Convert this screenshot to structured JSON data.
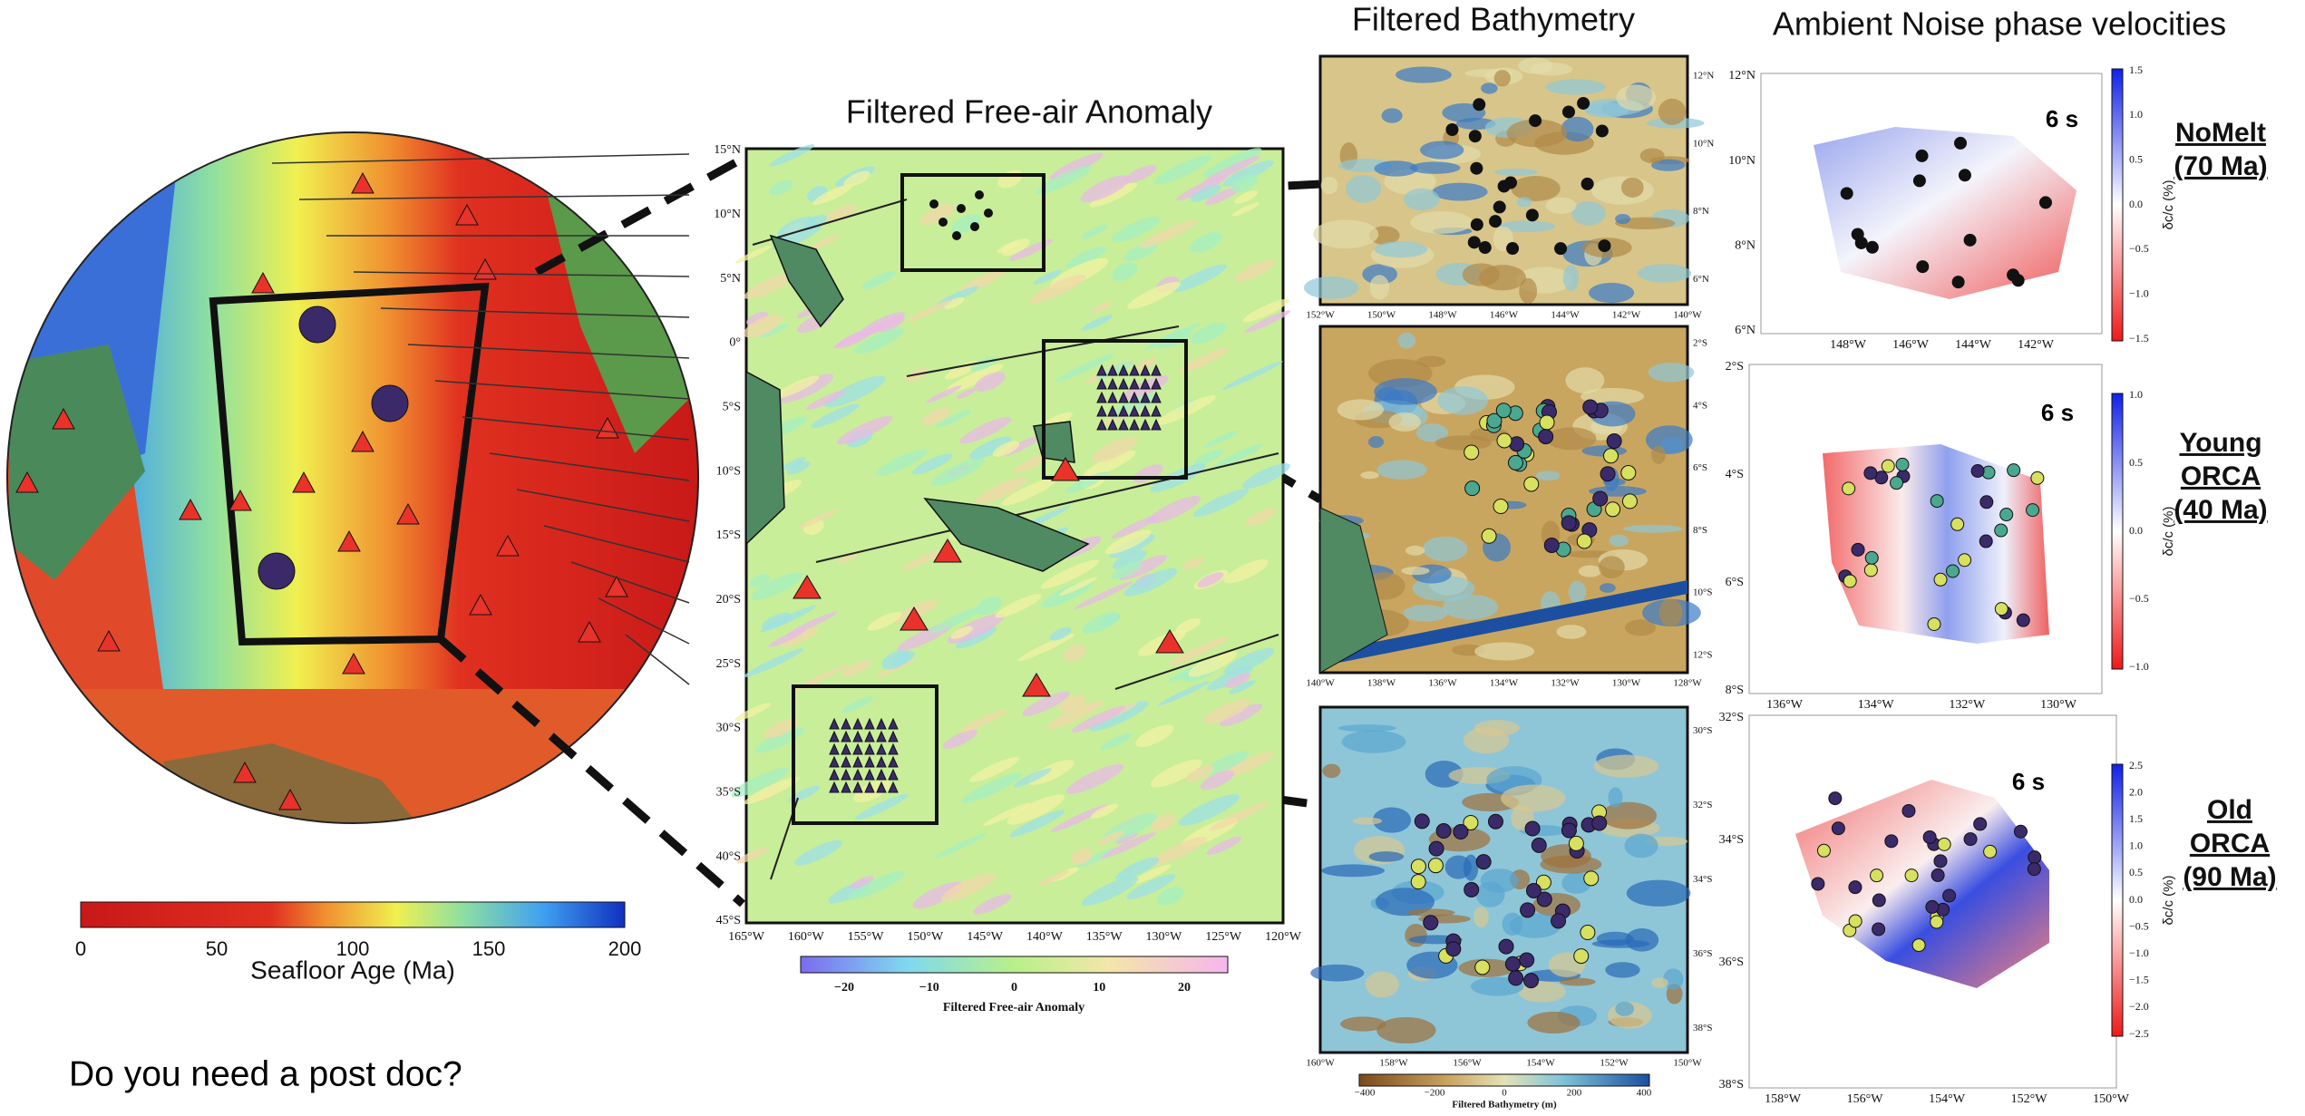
{
  "globe": {
    "colorbar": {
      "ticks": [
        "0",
        "50",
        "100",
        "150",
        "200"
      ],
      "label": "Seafloor Age (Ma)"
    }
  },
  "question": "Do you need a post doc?",
  "free_air": {
    "title": "Filtered Free-air Anomaly",
    "lat_ticks": [
      "15°N",
      "10°N",
      "5°N",
      "0°",
      "5°S",
      "10°S",
      "15°S",
      "20°S",
      "25°S",
      "30°S",
      "35°S",
      "40°S",
      "45°S"
    ],
    "lon_ticks": [
      "165°W",
      "160°W",
      "155°W",
      "150°W",
      "145°W",
      "140°W",
      "135°W",
      "130°W",
      "125°W",
      "120°W"
    ],
    "colorbar": {
      "ticks": [
        "−20",
        "−10",
        "0",
        "10",
        "20"
      ],
      "label": "Filtered Free-air Anomaly"
    }
  },
  "bathymetry": {
    "title": "Filtered Bathymetry",
    "panels": [
      {
        "lon_ticks": [
          "152°W",
          "150°W",
          "148°W",
          "146°W",
          "144°W",
          "142°W",
          "140°W"
        ],
        "lat_ticks": [
          "12°N",
          "10°N",
          "8°N",
          "6°N"
        ]
      },
      {
        "lon_ticks": [
          "140°W",
          "138°W",
          "136°W",
          "134°W",
          "132°W",
          "130°W",
          "128°W"
        ],
        "lat_ticks": [
          "2°S",
          "4°S",
          "6°S",
          "8°S",
          "10°S",
          "12°S"
        ]
      },
      {
        "lon_ticks": [
          "160°W",
          "158°W",
          "156°W",
          "154°W",
          "152°W",
          "150°W"
        ],
        "lat_ticks": [
          "30°S",
          "32°S",
          "34°S",
          "36°S",
          "38°S"
        ]
      }
    ],
    "colorbar": {
      "ticks": [
        "−400",
        "−200",
        "0",
        "200",
        "400"
      ],
      "label": "Filtered Bathymetry (m)"
    }
  },
  "ambient_noise": {
    "title": "Ambient Noise phase velocities",
    "panels": [
      {
        "period": "6 s",
        "lat_ticks": [
          "12°N",
          "10°N",
          "8°N",
          "6°N"
        ],
        "lon_ticks": [
          "148°W",
          "146°W",
          "144°W",
          "142°W"
        ],
        "colorbar_ticks": [
          "1.5",
          "1.0",
          "0.5",
          "0.0",
          "−0.5",
          "−1.0",
          "−1.5"
        ],
        "colorbar_label": "δc/c (%)",
        "site_lines": [
          "NoMelt",
          "(70 Ma)"
        ]
      },
      {
        "period": "6 s",
        "lat_ticks": [
          "2°S",
          "4°S",
          "6°S",
          "8°S"
        ],
        "lon_ticks": [
          "136°W",
          "134°W",
          "132°W",
          "130°W"
        ],
        "colorbar_ticks": [
          "1.0",
          "0.5",
          "0.0",
          "−0.5",
          "−1.0"
        ],
        "colorbar_label": "δc/c (%)",
        "site_lines": [
          "Young",
          "ORCA",
          "(40 Ma)"
        ]
      },
      {
        "period": "6 s",
        "lat_ticks": [
          "32°S",
          "34°S",
          "36°S",
          "38°S"
        ],
        "lon_ticks": [
          "158°W",
          "156°W",
          "154°W",
          "152°W",
          "150°W"
        ],
        "colorbar_ticks": [
          "2.5",
          "2.0",
          "1.5",
          "1.0",
          "0.5",
          "0.0",
          "−0.5",
          "−1.0",
          "−1.5",
          "−2.0",
          "−2.5"
        ],
        "colorbar_label": "δc/c (%)",
        "site_lines": [
          "Old",
          "ORCA",
          "(90 Ma)"
        ]
      }
    ]
  }
}
